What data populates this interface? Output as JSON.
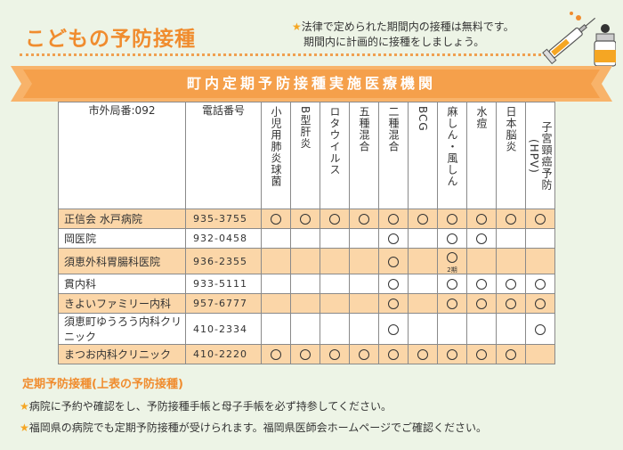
{
  "header": {
    "title": "こどもの予防接種",
    "note_lines": [
      "法律で定められた期間内の接種は無料です。",
      "期間内に計画的に接種をしましょう。"
    ]
  },
  "banner": "町内定期予防接種実施医療機関",
  "table": {
    "area_code_label": "市外局番:092",
    "phone_label": "電話番号",
    "vaccines": [
      "小児用肺炎球菌",
      "B型肝炎",
      "ロタウイルス",
      "五種混合",
      "二種混合",
      "BCG",
      "麻しん・風しん",
      "水痘",
      "日本脳炎",
      "子宮頸癌予防(HPV)"
    ],
    "rows": [
      {
        "name": "正信会 水戸病院",
        "tel": "935-3755",
        "marks": [
          1,
          1,
          1,
          1,
          1,
          1,
          1,
          1,
          1,
          1
        ],
        "note": ""
      },
      {
        "name": "岡医院",
        "tel": "932-0458",
        "marks": [
          0,
          0,
          0,
          0,
          1,
          0,
          1,
          1,
          0,
          0
        ],
        "note": ""
      },
      {
        "name": "須恵外科胃腸科医院",
        "tel": "936-2355",
        "marks": [
          0,
          0,
          0,
          0,
          1,
          0,
          1,
          0,
          0,
          0
        ],
        "note": "2期"
      },
      {
        "name": "貫内科",
        "tel": "933-5111",
        "marks": [
          0,
          0,
          0,
          0,
          1,
          0,
          1,
          1,
          1,
          1
        ],
        "note": ""
      },
      {
        "name": "きよいファミリー内科",
        "tel": "957-6777",
        "marks": [
          0,
          0,
          0,
          0,
          1,
          0,
          1,
          1,
          1,
          1
        ],
        "note": ""
      },
      {
        "name": "須恵町ゆうろう内科クリニック",
        "tel": "410-2334",
        "marks": [
          0,
          0,
          0,
          0,
          1,
          0,
          0,
          0,
          0,
          1
        ],
        "note": ""
      },
      {
        "name": "まつお内科クリニック",
        "tel": "410-2220",
        "marks": [
          1,
          1,
          1,
          1,
          1,
          1,
          1,
          1,
          1,
          0
        ],
        "note": ""
      }
    ]
  },
  "footer": {
    "title": "定期予防接種(上表の予防接種)",
    "lines": [
      "病院に予約や確認をし、予防接種手帳と母子手帳を必ず持参してください。",
      "福岡県の病院でも定期予防接種が受けられます。福岡県医師会ホームページでご確認ください。"
    ]
  },
  "colors": {
    "accent": "#f08c2e",
    "row_highlight": "#fbd6a8",
    "background": "#edf4e6"
  }
}
